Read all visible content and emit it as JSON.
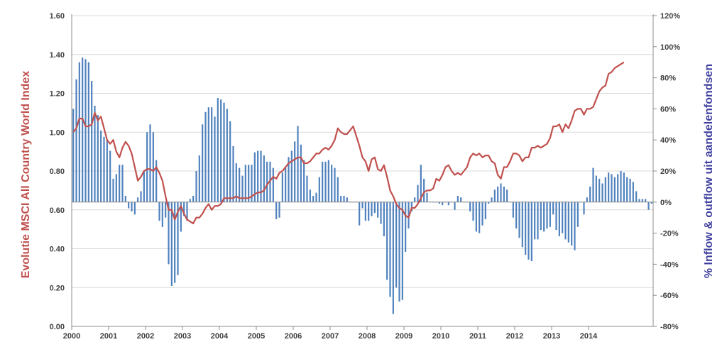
{
  "chart_data": {
    "type": "bar+line",
    "y_left": {
      "label": "Evolutie MSCI All Country World Index",
      "range": [
        0,
        1.6
      ],
      "ticks": [
        "0.00",
        "0.20",
        "0.40",
        "0.60",
        "0.80",
        "1.00",
        "1.20",
        "1.40",
        "1.60"
      ],
      "color": "#C0504D"
    },
    "y_right": {
      "label": "% Inflow &  outflow uit aandelenfondsen",
      "range": [
        -80,
        120
      ],
      "ticks": [
        "-80%",
        "-60%",
        "-40%",
        "-20%",
        "0%",
        "20%",
        "40%",
        "60%",
        "80%",
        "100%",
        "120%"
      ],
      "color": "#4F81BD"
    },
    "x": {
      "start": "2000-01",
      "labels": [
        "2000",
        "2001",
        "2002",
        "2003",
        "2004",
        "2005",
        "2006",
        "2007",
        "2008",
        "2009",
        "2010",
        "2011",
        "2012",
        "2013",
        "2014"
      ]
    },
    "grid": true,
    "series": [
      {
        "name": "Evolutie MSCI All Country World Index",
        "type": "line",
        "axis": "left",
        "color": "#C0504D",
        "values": [
          1.0,
          1.02,
          1.07,
          1.07,
          1.03,
          1.03,
          1.04,
          1.1,
          1.06,
          1.08,
          1.02,
          0.96,
          0.94,
          0.96,
          0.9,
          0.87,
          0.92,
          0.95,
          0.93,
          0.89,
          0.82,
          0.75,
          0.77,
          0.8,
          0.81,
          0.81,
          0.8,
          0.82,
          0.79,
          0.75,
          0.67,
          0.6,
          0.6,
          0.55,
          0.59,
          0.62,
          0.58,
          0.55,
          0.54,
          0.53,
          0.56,
          0.56,
          0.58,
          0.61,
          0.63,
          0.6,
          0.62,
          0.62,
          0.63,
          0.66,
          0.66,
          0.66,
          0.66,
          0.67,
          0.66,
          0.66,
          0.66,
          0.66,
          0.67,
          0.68,
          0.69,
          0.69,
          0.7,
          0.73,
          0.75,
          0.77,
          0.76,
          0.79,
          0.8,
          0.82,
          0.84,
          0.85,
          0.86,
          0.87,
          0.87,
          0.84,
          0.84,
          0.85,
          0.87,
          0.89,
          0.89,
          0.91,
          0.92,
          0.91,
          0.93,
          0.96,
          1.02,
          1.0,
          0.99,
          0.99,
          1.01,
          1.03,
          0.98,
          0.93,
          0.87,
          0.85,
          0.8,
          0.86,
          0.87,
          0.81,
          0.8,
          0.83,
          0.77,
          0.7,
          0.67,
          0.63,
          0.61,
          0.6,
          0.57,
          0.56,
          0.61,
          0.61,
          0.63,
          0.66,
          0.69,
          0.7,
          0.7,
          0.71,
          0.76,
          0.75,
          0.78,
          0.82,
          0.83,
          0.8,
          0.78,
          0.79,
          0.78,
          0.8,
          0.82,
          0.87,
          0.89,
          0.88,
          0.89,
          0.87,
          0.88,
          0.88,
          0.85,
          0.84,
          0.78,
          0.76,
          0.82,
          0.82,
          0.85,
          0.89,
          0.89,
          0.88,
          0.85,
          0.87,
          0.87,
          0.92,
          0.92,
          0.93,
          0.92,
          0.93,
          0.94,
          0.97,
          1.03,
          1.03,
          1.04,
          1.0,
          1.04,
          1.02,
          1.06,
          1.11,
          1.12,
          1.12,
          1.09,
          1.12,
          1.12,
          1.13,
          1.17,
          1.21,
          1.23,
          1.24,
          1.3,
          1.31,
          1.33,
          1.34,
          1.35,
          1.36
        ]
      },
      {
        "name": "% Inflow &  outflow uit aandelenfondsen",
        "type": "bar",
        "axis": "right",
        "color": "#4F81BD",
        "values": [
          60,
          79,
          90,
          93,
          92,
          90,
          78,
          62,
          56,
          46,
          42,
          40,
          33,
          15,
          18,
          24,
          24,
          4,
          -4,
          -6,
          -8,
          3,
          7,
          20,
          45,
          50,
          45,
          27,
          -12,
          -16,
          -10,
          -40,
          -54,
          -52,
          -47,
          -19,
          -9,
          -12,
          2,
          4,
          20,
          30,
          50,
          58,
          61,
          61,
          55,
          67,
          66,
          64,
          60,
          52,
          36,
          25,
          22,
          17,
          24,
          24,
          24,
          32,
          33,
          33,
          30,
          26,
          26,
          22,
          -11,
          -10,
          19,
          22,
          29,
          33,
          39,
          49,
          37,
          27,
          17,
          8,
          4,
          6,
          16,
          26,
          26,
          27,
          24,
          22,
          16,
          4,
          4,
          3,
          0,
          0,
          0,
          -15,
          -4,
          -12,
          -12,
          -9,
          -7,
          -10,
          -14,
          -22,
          -50,
          -61,
          -72,
          -55,
          -64,
          -63,
          -32,
          -17,
          -6,
          3,
          11,
          24,
          15,
          6,
          0,
          0,
          0,
          -1,
          -2,
          0,
          -2,
          0,
          -5,
          4,
          3,
          0,
          0,
          -6,
          -12,
          -19,
          -20,
          -15,
          -11,
          -1,
          3,
          8,
          10,
          12,
          10,
          8,
          0,
          -10,
          -17,
          -23,
          -29,
          -34,
          -37,
          -38,
          -24,
          -24,
          -18,
          -19,
          -17,
          -16,
          -8,
          -18,
          -22,
          -20,
          -24,
          -26,
          -28,
          -31,
          -16,
          0,
          -8,
          3,
          10,
          22,
          17,
          15,
          12,
          16,
          19,
          18,
          16,
          18,
          20,
          19,
          16,
          15,
          13,
          7,
          2,
          2,
          2,
          -5,
          -1
        ]
      }
    ]
  }
}
